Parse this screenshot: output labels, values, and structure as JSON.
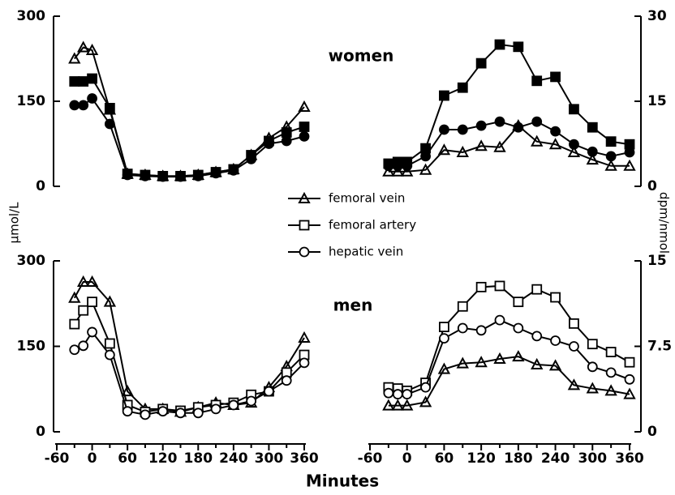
{
  "chart_data": [
    {
      "type": "line",
      "x": [
        -30,
        -15,
        0,
        30,
        60,
        90,
        120,
        150,
        180,
        210,
        240,
        270,
        300,
        330,
        360
      ],
      "xlim": [
        -60,
        360
      ],
      "ylim": [
        0,
        300
      ],
      "yticks": [
        0,
        150,
        300
      ],
      "y_axis_side": "left",
      "filled": true,
      "series": [
        {
          "name": "femoral vein",
          "marker": "triangle",
          "values": [
            225,
            245,
            240,
            135,
            22,
            20,
            18,
            18,
            20,
            25,
            30,
            55,
            85,
            105,
            140
          ]
        },
        {
          "name": "femoral artery",
          "marker": "square",
          "values": [
            185,
            185,
            190,
            138,
            22,
            20,
            18,
            18,
            20,
            25,
            30,
            55,
            80,
            95,
            105
          ]
        },
        {
          "name": "hepatic vein",
          "marker": "circle",
          "values": [
            143,
            143,
            155,
            110,
            20,
            18,
            17,
            17,
            18,
            23,
            28,
            48,
            75,
            80,
            88
          ]
        }
      ]
    },
    {
      "type": "line",
      "title": "women",
      "x": [
        -30,
        -15,
        0,
        30,
        60,
        90,
        120,
        150,
        180,
        210,
        240,
        270,
        300,
        330,
        360
      ],
      "xlim": [
        -60,
        360
      ],
      "ylim": [
        0,
        30
      ],
      "yticks": [
        0,
        15,
        30
      ],
      "y_axis_side": "right",
      "filled": true,
      "series": [
        {
          "name": "femoral vein",
          "marker": "triangle",
          "values": [
            2.6,
            2.6,
            2.6,
            2.9,
            6.4,
            6,
            7.1,
            6.9,
            10.7,
            7.9,
            7.4,
            6,
            4.7,
            3.6,
            3.6
          ]
        },
        {
          "name": "femoral artery",
          "marker": "square",
          "values": [
            4,
            4.3,
            4.3,
            6.7,
            16,
            17.4,
            21.7,
            25,
            24.6,
            18.6,
            19.3,
            13.6,
            10.4,
            7.9,
            7.4
          ]
        },
        {
          "name": "hepatic vein",
          "marker": "circle",
          "values": [
            3.6,
            3.6,
            3.6,
            5.3,
            10,
            10,
            10.7,
            11.4,
            10.4,
            11.4,
            9.7,
            7.4,
            6.1,
            5.3,
            6
          ]
        }
      ]
    },
    {
      "type": "line",
      "x": [
        -30,
        -15,
        0,
        30,
        60,
        90,
        120,
        150,
        180,
        210,
        240,
        270,
        300,
        330,
        360
      ],
      "xlim": [
        -60,
        360
      ],
      "xticks": [
        -60,
        0,
        60,
        120,
        180,
        240,
        300,
        360
      ],
      "x_label": "Minutes",
      "ylim": [
        0,
        300
      ],
      "yticks": [
        0,
        150,
        300
      ],
      "y_axis_side": "left",
      "filled": false,
      "y_label": "µmol/L",
      "series": [
        {
          "name": "femoral vein",
          "marker": "triangle",
          "values": [
            235,
            263,
            263,
            228,
            71,
            40,
            40,
            35,
            43,
            51,
            47,
            51,
            78,
            115,
            165
          ]
        },
        {
          "name": "femoral artery",
          "marker": "square",
          "values": [
            189,
            213,
            228,
            155,
            47,
            35,
            40,
            37,
            43,
            47,
            51,
            65,
            71,
            104,
            135
          ]
        },
        {
          "name": "hepatic vein",
          "marker": "circle",
          "values": [
            144,
            151,
            175,
            135,
            36,
            30,
            36,
            33,
            33,
            40,
            47,
            54,
            71,
            90,
            121
          ]
        }
      ]
    },
    {
      "type": "line",
      "title": "men",
      "x": [
        -30,
        -15,
        0,
        30,
        60,
        90,
        120,
        150,
        180,
        210,
        240,
        270,
        300,
        330,
        360
      ],
      "xlim": [
        -60,
        360
      ],
      "xticks": [
        -60,
        0,
        60,
        120,
        180,
        240,
        300,
        360
      ],
      "ylim": [
        0,
        15
      ],
      "yticks": [
        0,
        7.5,
        15
      ],
      "y_axis_side": "right",
      "filled": false,
      "y_label": "dpm/nmol",
      "series": [
        {
          "name": "femoral vein",
          "marker": "triangle",
          "values": [
            2.3,
            2.3,
            2.3,
            2.6,
            5.5,
            6,
            6.1,
            6.4,
            6.6,
            5.9,
            5.8,
            4.1,
            3.8,
            3.6,
            3.3
          ]
        },
        {
          "name": "femoral artery",
          "marker": "square",
          "values": [
            3.9,
            3.8,
            3.6,
            4.3,
            9.2,
            11,
            12.7,
            12.8,
            11.4,
            12.5,
            11.8,
            9.5,
            7.7,
            7,
            6.1
          ]
        },
        {
          "name": "hepatic vein",
          "marker": "circle",
          "values": [
            3.4,
            3.3,
            3.3,
            3.9,
            8.2,
            9.1,
            8.9,
            9.8,
            9.1,
            8.4,
            8,
            7.5,
            5.7,
            5.2,
            4.6
          ]
        }
      ]
    }
  ]
}
